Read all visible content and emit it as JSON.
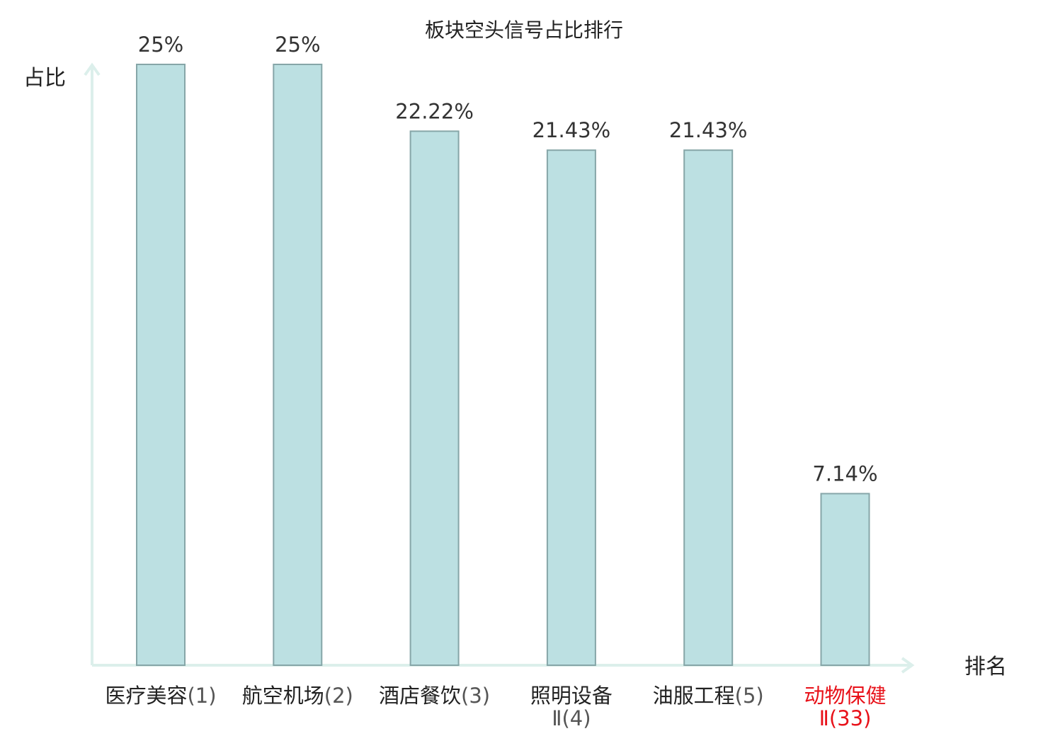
{
  "chart_data": {
    "type": "bar",
    "title": "板块空头信号占比排行",
    "ylabel": "占比",
    "xlabel": "排名",
    "ylim": [
      0,
      25
    ],
    "grid": false,
    "categories": [
      {
        "name": "医疗美容",
        "rank": "(1)",
        "highlight": false
      },
      {
        "name": "航空机场",
        "rank": "(2)",
        "highlight": false
      },
      {
        "name": "酒店餐饮",
        "rank": "(3)",
        "highlight": false
      },
      {
        "name": "照明设备",
        "rank": "Ⅱ(4)",
        "highlight": false
      },
      {
        "name": "油服工程",
        "rank": "(5)",
        "highlight": false
      },
      {
        "name": "动物保健",
        "rank": "Ⅱ(33)",
        "highlight": true
      }
    ],
    "values": [
      25,
      25,
      22.22,
      21.43,
      21.43,
      7.14
    ],
    "value_labels": [
      "25%",
      "25%",
      "22.22%",
      "21.43%",
      "21.43%",
      "7.14%"
    ],
    "colors": {
      "bar_fill": "#bce0e2",
      "bar_stroke": "#86a6a8",
      "axis": "#dcefeb",
      "highlight_text": "#e8121a"
    }
  }
}
